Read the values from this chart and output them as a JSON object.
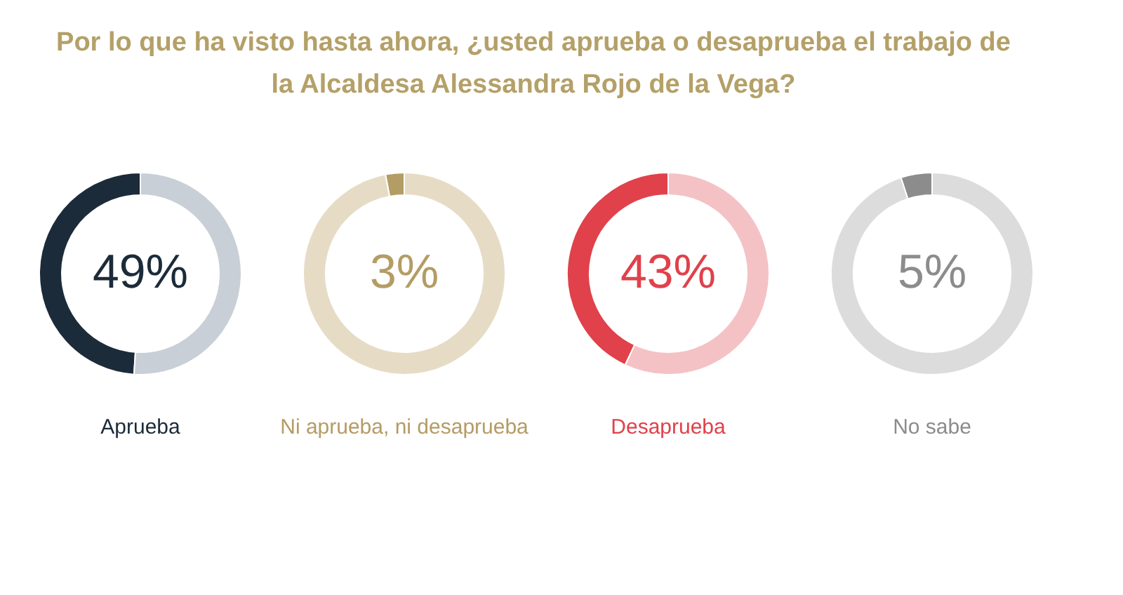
{
  "chart_data": [
    {
      "type": "other",
      "title": "Por lo que ha visto hasta ahora, ¿usted aprueba o desaprueba el trabajo de la Alcaldesa Alessandra Rojo de la Vega?"
    },
    {
      "type": "donut",
      "title": "Aprueba",
      "categories": [
        null,
        null
      ],
      "values": [
        49,
        51
      ],
      "colors": [
        "#1c2b3a",
        "#c9cfd6"
      ],
      "value_labels": [
        "49%",
        null
      ]
    },
    {
      "type": "donut",
      "title": "Ni aprueba, ni desaprueba",
      "categories": [
        null,
        null
      ],
      "values": [
        3,
        97
      ],
      "colors": [
        "#b49c65",
        "#e6dcc6"
      ],
      "value_labels": [
        "3%",
        null
      ]
    },
    {
      "type": "donut",
      "title": "Desaprueba",
      "categories": [
        null,
        null
      ],
      "values": [
        43,
        57
      ],
      "colors": [
        "#e0414b",
        "#f4c2c5"
      ],
      "value_labels": [
        "43%",
        null
      ]
    },
    {
      "type": "donut",
      "title": "No sabe",
      "categories": [
        null,
        null
      ],
      "values": [
        5,
        95
      ],
      "colors": [
        "#8c8c8c",
        "#dcdcdc"
      ],
      "value_labels": [
        "5%",
        null
      ]
    }
  ]
}
